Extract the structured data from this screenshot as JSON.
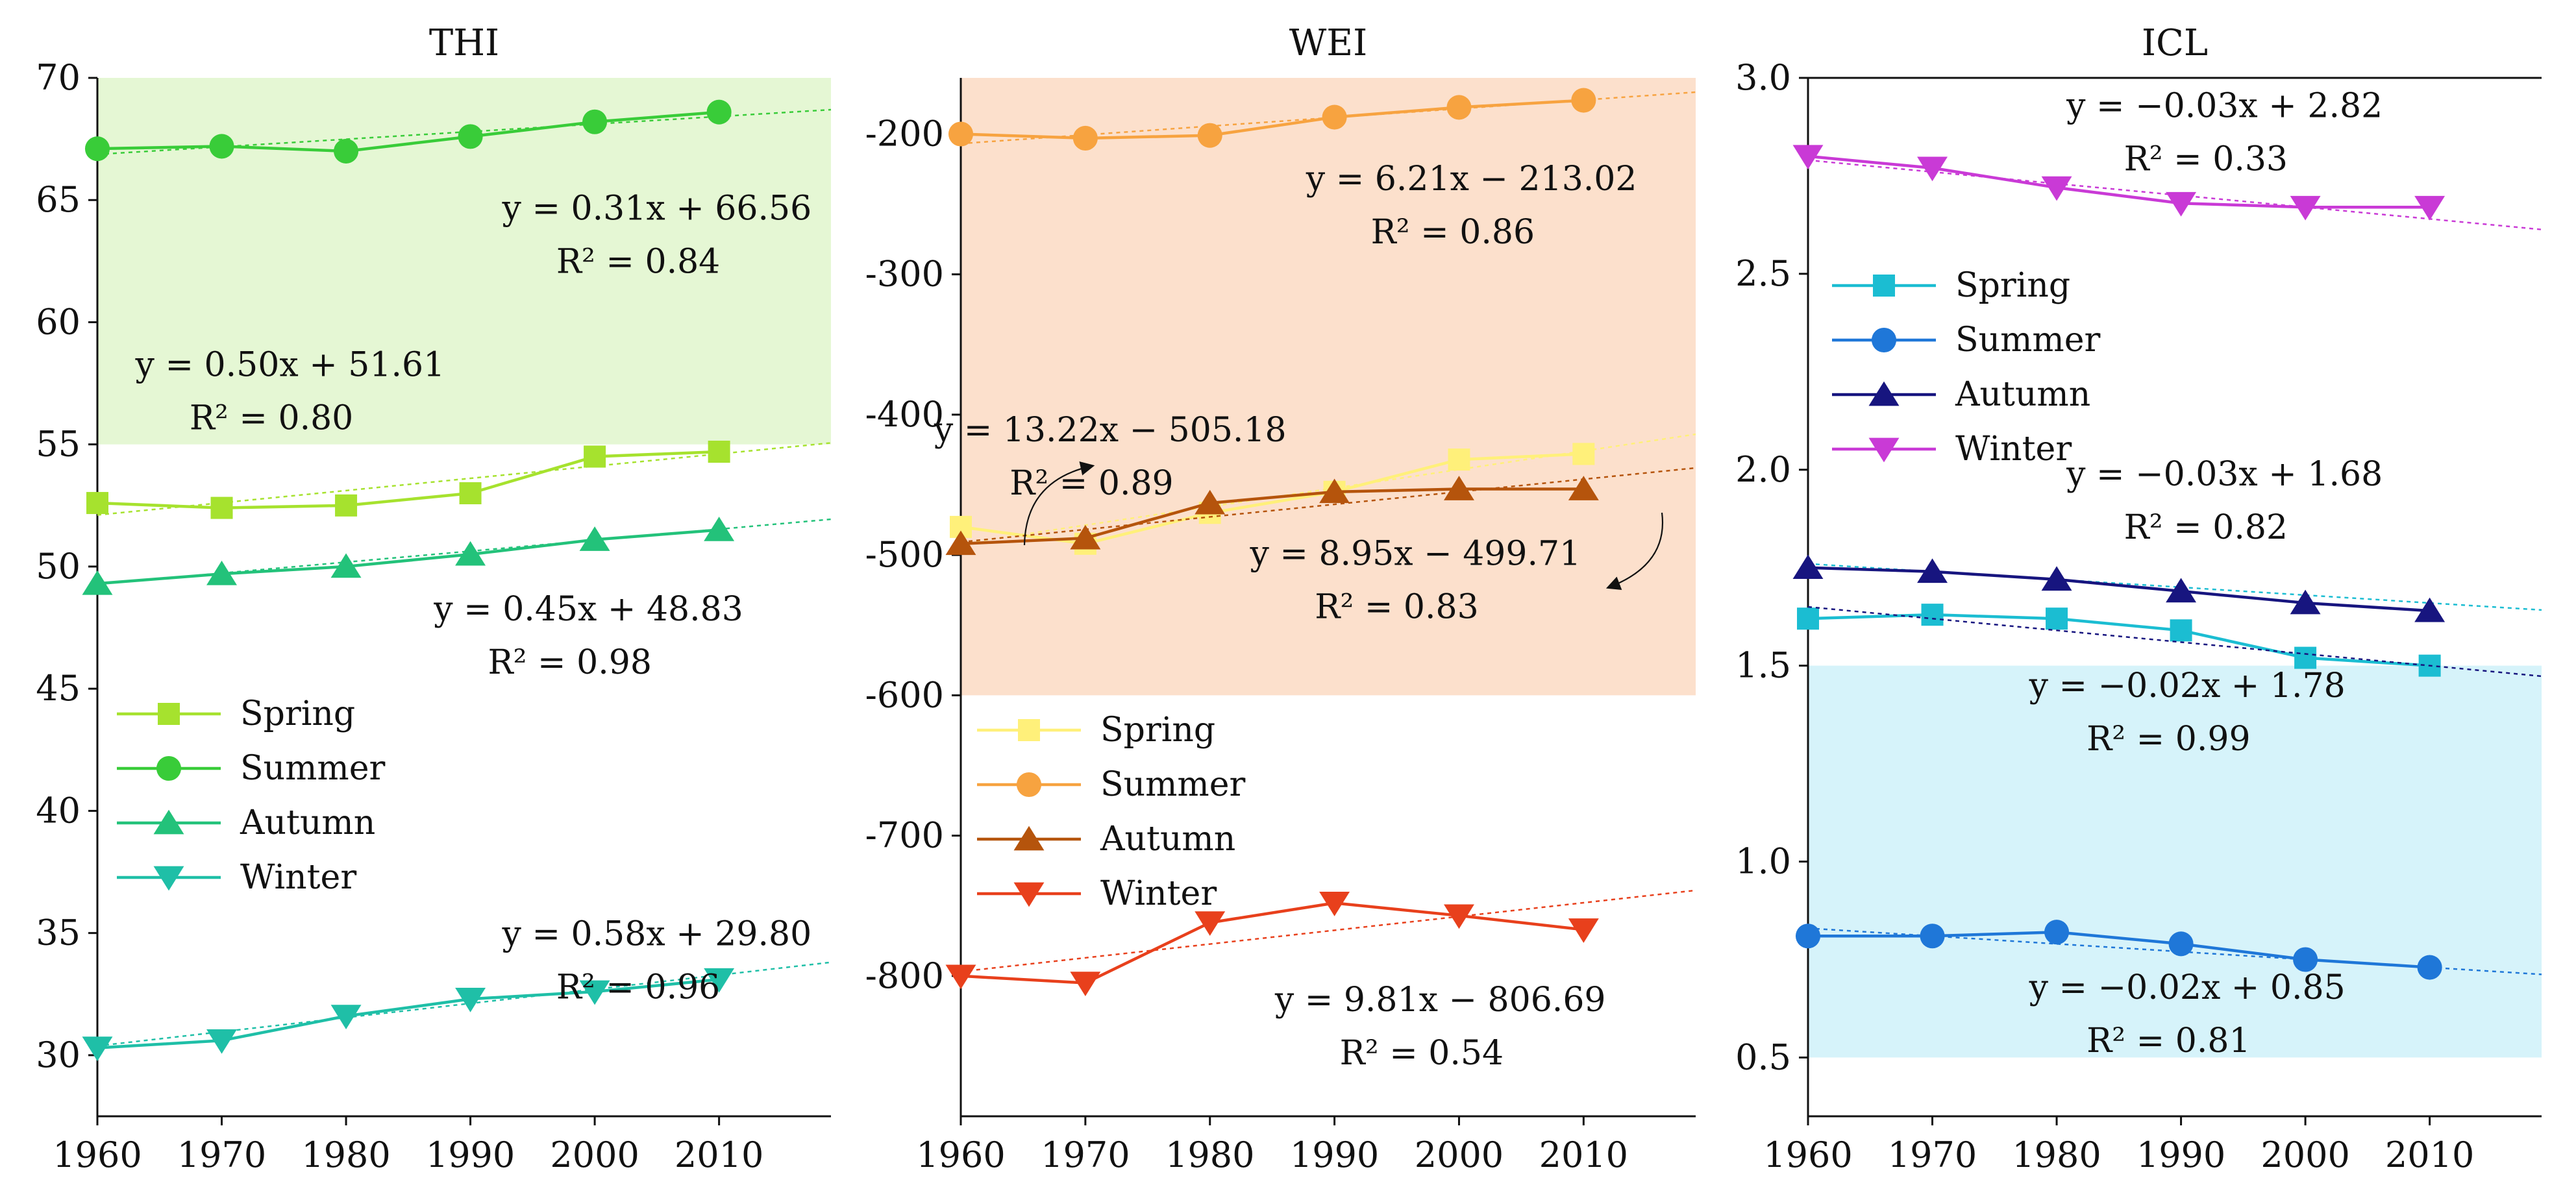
{
  "chart_data": [
    {
      "type": "line",
      "title": "THI",
      "x": [
        1960,
        1970,
        1980,
        1990,
        2000,
        2010
      ],
      "xlim": [
        1960,
        2019
      ],
      "ylim": [
        27.5,
        70
      ],
      "yticks": [
        30,
        35,
        40,
        45,
        50,
        55,
        60,
        65,
        70
      ],
      "xticks": [
        1960,
        1970,
        1980,
        1990,
        2000,
        2010
      ],
      "zones": [
        {
          "y0": 55,
          "y1": 70,
          "color": "#e5f7d4"
        }
      ],
      "series": [
        {
          "name": "Spring",
          "color": "#a6e22e",
          "marker": "square",
          "values": [
            52.6,
            52.4,
            52.5,
            53.0,
            54.5,
            54.7
          ],
          "trend": [
            0.5,
            51.61
          ]
        },
        {
          "name": "Summer",
          "color": "#39cc39",
          "marker": "circle",
          "values": [
            67.1,
            67.2,
            67.0,
            67.6,
            68.2,
            68.6
          ],
          "trend": [
            0.31,
            66.56
          ]
        },
        {
          "name": "Autumn",
          "color": "#23c27a",
          "marker": "triangle-up",
          "values": [
            49.3,
            49.7,
            50.0,
            50.5,
            51.1,
            51.5
          ],
          "trend": [
            0.45,
            48.83
          ]
        },
        {
          "name": "Winter",
          "color": "#1fbfa7",
          "marker": "triangle-down",
          "values": [
            30.3,
            30.6,
            31.6,
            32.3,
            32.6,
            33.1
          ],
          "trend": [
            0.58,
            29.8
          ]
        }
      ],
      "annotations": [
        {
          "eq": "y = 0.31x + 66.56",
          "r2": "R² = 0.84",
          "x": 2005,
          "y": 64.2
        },
        {
          "eq": "y = 0.50x + 51.61",
          "r2": "R² = 0.80",
          "x": 1975.5,
          "y": 57.8
        },
        {
          "eq": "y = 0.45x + 48.83",
          "r2": "R² = 0.98",
          "x": 1999.5,
          "y": 47.8
        },
        {
          "eq": "y = 0.58x + 29.80",
          "r2": "R² = 0.96",
          "x": 2005,
          "y": 34.5
        }
      ],
      "legend": {
        "labels": [
          "Spring",
          "Summer",
          "Autumn",
          "Winter"
        ],
        "position": "left"
      }
    },
    {
      "type": "line",
      "title": "WEI",
      "x": [
        1960,
        1970,
        1980,
        1990,
        2000,
        2010
      ],
      "xlim": [
        1960,
        2019
      ],
      "ylim": [
        -900,
        -160
      ],
      "yticks": [
        -200,
        -300,
        -400,
        -500,
        -600,
        -700,
        -800
      ],
      "xticks": [
        1960,
        1970,
        1980,
        1990,
        2000,
        2010
      ],
      "zones": [
        {
          "y0": -600,
          "y1": -160,
          "color": "#fce0cc"
        }
      ],
      "series": [
        {
          "name": "Spring",
          "color": "#fff07a",
          "marker": "square",
          "values": [
            -480,
            -492,
            -470,
            -455,
            -432,
            -428
          ],
          "trend": [
            13.22,
            -505.18
          ]
        },
        {
          "name": "Summer",
          "color": "#f7a340",
          "marker": "circle",
          "values": [
            -200,
            -203,
            -201,
            -188,
            -181,
            -176
          ],
          "trend": [
            6.21,
            -213.02
          ]
        },
        {
          "name": "Autumn",
          "color": "#b5540c",
          "marker": "triangle-up",
          "values": [
            -492,
            -488,
            -463,
            -455,
            -453,
            -453
          ],
          "trend": [
            8.95,
            -499.71
          ]
        },
        {
          "name": "Winter",
          "color": "#e8401c",
          "marker": "triangle-down",
          "values": [
            -800,
            -805,
            -762,
            -748,
            -757,
            -767
          ],
          "trend": [
            9.81,
            -806.69
          ]
        }
      ],
      "annotations": [
        {
          "eq": "y = 6.21x − 213.02",
          "r2": "R² = 0.86",
          "x": 2001,
          "y": -240
        },
        {
          "eq": "y = 13.22x − 505.18",
          "r2": "R² = 0.89",
          "x": 1972,
          "y": -419
        },
        {
          "eq": "y = 8.95x − 499.71",
          "r2": "R² = 0.83",
          "x": 1996.5,
          "y": -507
        },
        {
          "eq": "y = 9.81x − 806.69",
          "r2": "R² = 0.54",
          "x": 1998.5,
          "y": -825
        }
      ],
      "legend": {
        "labels": [
          "Spring",
          "Summer",
          "Autumn",
          "Winter"
        ],
        "position": "lower-left"
      }
    },
    {
      "type": "line",
      "title": "ICL",
      "x": [
        1960,
        1970,
        1980,
        1990,
        2000,
        2010
      ],
      "xlim": [
        1960,
        2019
      ],
      "ylim": [
        0.35,
        3.0
      ],
      "yticks": [
        0.5,
        1.0,
        1.5,
        2.0,
        2.5,
        3.0
      ],
      "xticks": [
        1960,
        1970,
        1980,
        1990,
        2000,
        2010
      ],
      "zones": [
        {
          "y0": 0.5,
          "y1": 1.5,
          "color": "#d6f3fa"
        }
      ],
      "series": [
        {
          "name": "Spring",
          "color": "#1bbdd2",
          "marker": "square",
          "values": [
            1.62,
            1.63,
            1.62,
            1.59,
            1.52,
            1.5
          ],
          "trend": [
            -0.02,
            1.78
          ]
        },
        {
          "name": "Summer",
          "color": "#1f77d8",
          "marker": "circle",
          "values": [
            0.81,
            0.81,
            0.82,
            0.79,
            0.75,
            0.73
          ],
          "trend": [
            -0.02,
            0.85
          ]
        },
        {
          "name": "Autumn",
          "color": "#17157f",
          "marker": "triangle-up",
          "values": [
            1.75,
            1.74,
            1.72,
            1.69,
            1.66,
            1.64
          ],
          "trend": [
            -0.03,
            1.68
          ]
        },
        {
          "name": "Winter",
          "color": "#c93ad6",
          "marker": "triangle-down",
          "values": [
            2.8,
            2.77,
            2.72,
            2.68,
            2.67,
            2.67
          ],
          "trend": [
            -0.03,
            2.82
          ]
        }
      ],
      "annotations": [
        {
          "eq": "y = −0.03x + 2.82",
          "r2": "R² = 0.33",
          "x": 1993.5,
          "y": 2.9
        },
        {
          "eq": "y = −0.03x + 1.68",
          "r2": "R² = 0.82",
          "x": 1993.5,
          "y": 1.96
        },
        {
          "eq": "y = −0.02x + 1.78",
          "r2": "R² = 0.99",
          "x": 1990.5,
          "y": 1.42
        },
        {
          "eq": "y = −0.02x + 0.85",
          "r2": "R² = 0.81",
          "x": 1990.5,
          "y": 0.65
        }
      ],
      "legend": {
        "labels": [
          "Spring",
          "Summer",
          "Autumn",
          "Winter"
        ],
        "position": "upper-left"
      }
    }
  ]
}
